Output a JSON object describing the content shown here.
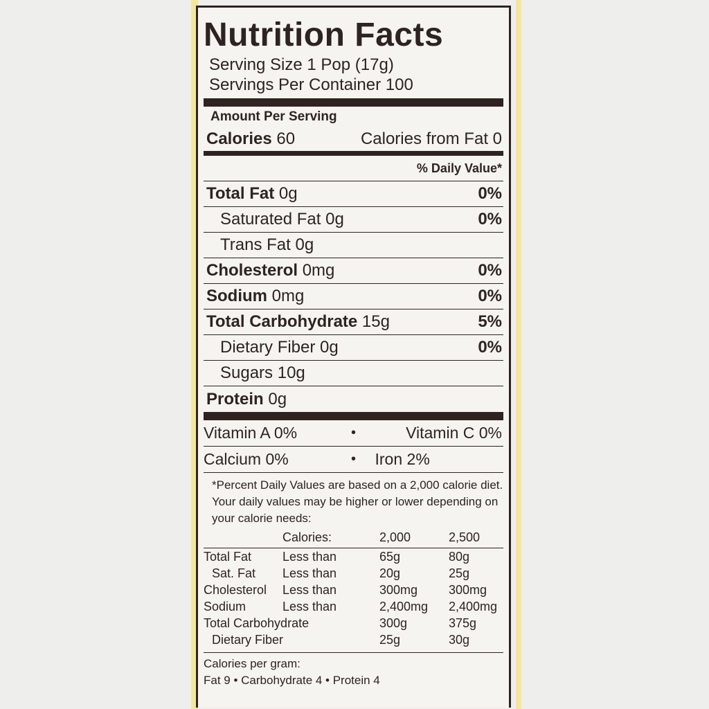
{
  "label": {
    "title": "Nutrition Facts",
    "serving_size": "Serving Size 1 Pop (17g)",
    "servings_per_container": "Servings Per Container 100",
    "amount_per_serving": "Amount Per Serving",
    "calories_label": "Calories",
    "calories_value": "60",
    "calories_from_fat": "Calories from Fat 0",
    "daily_value_header": "% Daily Value*",
    "nutrients": [
      {
        "name": "Total Fat",
        "amount": "0g",
        "dv": "0%"
      },
      {
        "name": "Saturated Fat",
        "amount": "0g",
        "dv": "0%"
      },
      {
        "name": "Trans Fat",
        "amount": "0g",
        "dv": ""
      },
      {
        "name": "Cholesterol",
        "amount": "0mg",
        "dv": "0%"
      },
      {
        "name": "Sodium",
        "amount": "0mg",
        "dv": "0%"
      },
      {
        "name": "Total Carbohydrate",
        "amount": "15g",
        "dv": "5%"
      },
      {
        "name": "Dietary Fiber",
        "amount": "0g",
        "dv": "0%"
      },
      {
        "name": "Sugars",
        "amount": "10g",
        "dv": ""
      },
      {
        "name": "Protein",
        "amount": "0g",
        "dv": ""
      }
    ],
    "vitamins": {
      "vitamin_a": "Vitamin A 0%",
      "vitamin_c": "Vitamin C 0%",
      "calcium": "Calcium 0%",
      "iron": "Iron 2%",
      "separator": "•"
    },
    "footnote": "*Percent Daily Values are based on a 2,000 calorie diet. Your daily values may be higher or lower depending on your calorie needs:",
    "dv_table": {
      "header": [
        "",
        "Calories:",
        "2,000",
        "2,500"
      ],
      "rows": [
        [
          "Total Fat",
          "Less than",
          "65g",
          "80g"
        ],
        [
          "Sat. Fat",
          "Less than",
          "20g",
          "25g"
        ],
        [
          "Cholesterol",
          "Less than",
          "300mg",
          "300mg"
        ],
        [
          "Sodium",
          "Less than",
          "2,400mg",
          "2,400mg"
        ],
        [
          "Total Carbohydrate",
          "",
          "300g",
          "375g"
        ],
        [
          "Dietary Fiber",
          "",
          "25g",
          "30g"
        ]
      ]
    },
    "calories_per_gram_label": "Calories per gram:",
    "calories_per_gram": "Fat 9 • Carbohydrate 4 • Protein 4"
  },
  "colors": {
    "ink": "#2e2320",
    "panel": "#f5f4f1",
    "background": "#eeeeec",
    "edge_yellow": "#f3e7a0"
  }
}
